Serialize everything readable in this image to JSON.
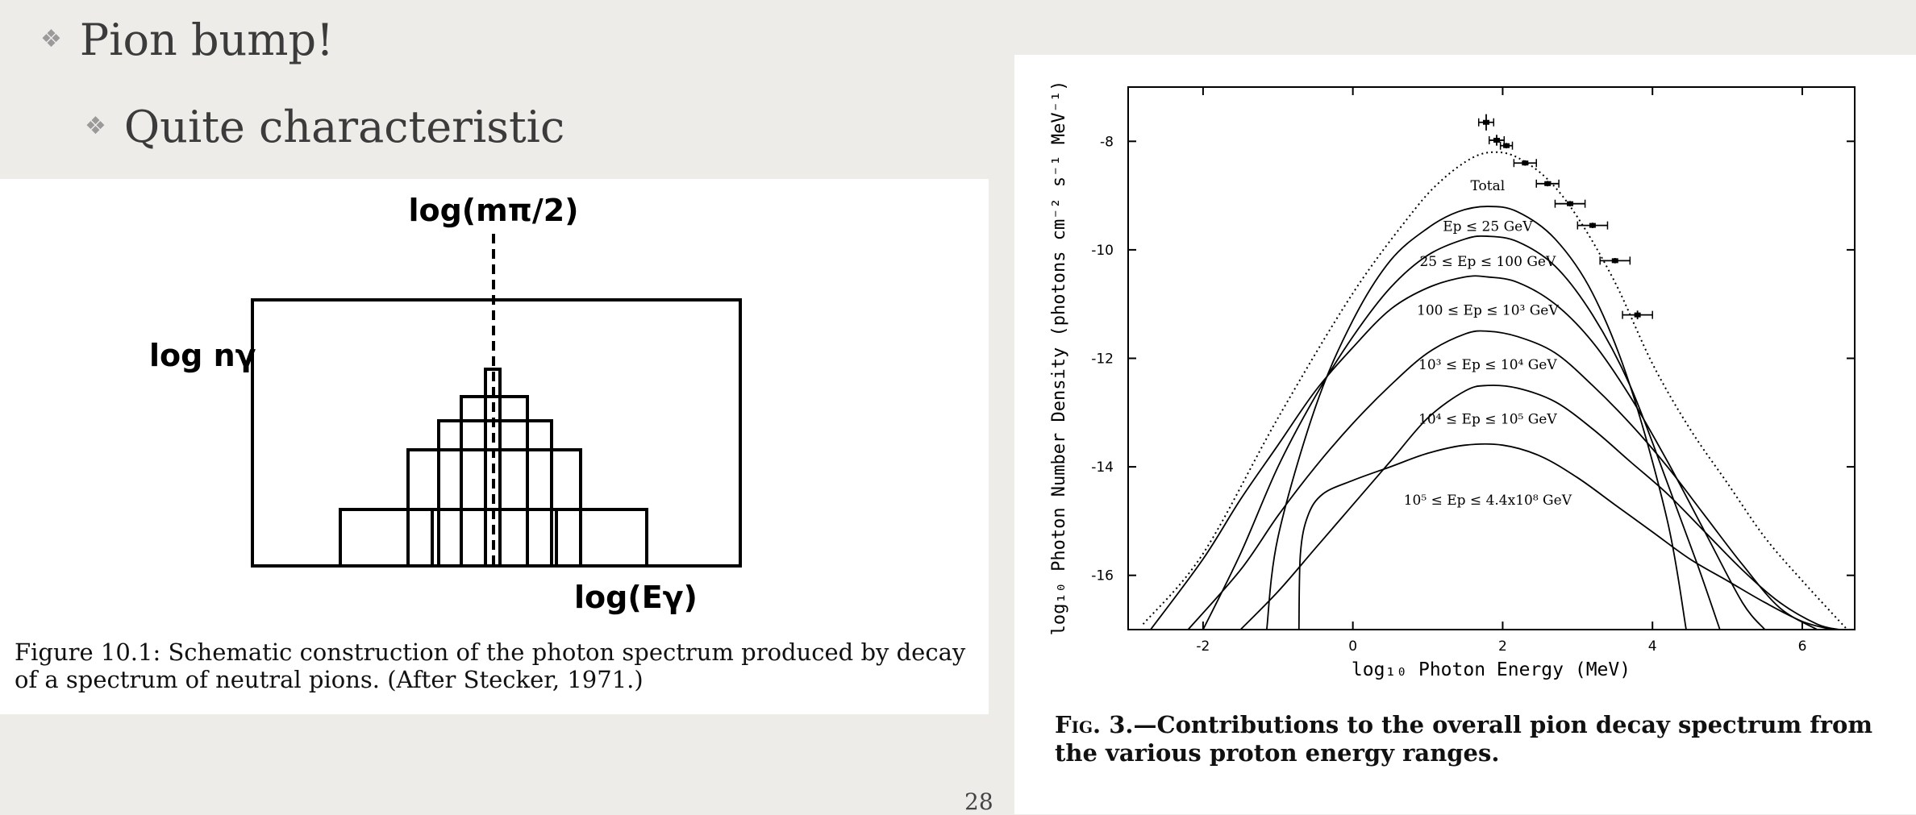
{
  "slide": {
    "bullet1": "Pion bump!",
    "bullet2": "Quite characteristic",
    "page_number": "28"
  },
  "left_figure": {
    "top_label": "log(mπ/2)",
    "y_label": "log nγ",
    "x_label": "log(Eγ)",
    "caption": "Figure 10.1: Schematic construction of the photon spectrum produced by decay of a spectrum of neutral pions. (After Stecker, 1971.)"
  },
  "chart_data": {
    "type": "line",
    "xlabel": "log₁₀ Photon Energy (MeV)",
    "ylabel": "log₁₀ Photon Number Density (photons cm⁻² s⁻¹ MeV⁻¹)",
    "xlim": [
      -3,
      6.7
    ],
    "ylim": [
      -17,
      -7
    ],
    "x_ticks": [
      -2,
      0,
      2,
      4,
      6
    ],
    "y_ticks": [
      -8,
      -10,
      -12,
      -14,
      -16
    ],
    "grid": false,
    "caption_label": "Fig. 3.",
    "caption_text": "—Contributions to the overall pion decay spectrum from the various proton energy ranges.",
    "series": [
      {
        "name": "Total",
        "style": "dotted",
        "x": [
          -2.8,
          -2,
          -1,
          0,
          0.8,
          1.2,
          1.6,
          1.9,
          2.2,
          2.6,
          3,
          3.5,
          4,
          4.5,
          5,
          5.5,
          6,
          6.6
        ],
        "y": [
          -16.9,
          -15.6,
          -13.1,
          -10.8,
          -9.3,
          -8.7,
          -8.3,
          -8.2,
          -8.3,
          -8.7,
          -9.4,
          -10.6,
          -12.1,
          -13.3,
          -14.3,
          -15.3,
          -16.1,
          -17.0
        ]
      },
      {
        "name": "Ep ≤ 25 GeV",
        "style": "solid",
        "x": [
          -1.15,
          -1,
          -0.5,
          0,
          0.5,
          1,
          1.4,
          1.8,
          2.2,
          2.7,
          3.2,
          3.7,
          4.2,
          4.45
        ],
        "y": [
          -17,
          -15.3,
          -12.9,
          -11.3,
          -10.2,
          -9.6,
          -9.3,
          -9.2,
          -9.3,
          -9.8,
          -10.8,
          -12.5,
          -15.0,
          -17
        ]
      },
      {
        "name": "25 ≤ Ep ≤ 100 GeV",
        "style": "solid",
        "x": [
          -2.0,
          -1.5,
          -1,
          -0.5,
          0,
          0.5,
          1,
          1.5,
          1.8,
          2.2,
          2.7,
          3.2,
          3.7,
          4.2,
          4.6,
          4.9
        ],
        "y": [
          -17,
          -15.6,
          -14.0,
          -12.7,
          -11.6,
          -10.7,
          -10.1,
          -9.8,
          -9.75,
          -9.85,
          -10.3,
          -11.2,
          -12.5,
          -14.3,
          -15.8,
          -17
        ]
      },
      {
        "name": "100 ≤ Ep ≤ 10³ GeV",
        "style": "solid",
        "x": [
          -2.7,
          -2,
          -1.5,
          -1,
          -0.5,
          0,
          0.5,
          1,
          1.5,
          1.8,
          2.2,
          2.7,
          3.2,
          3.7,
          4.2,
          4.7,
          5.2,
          5.5
        ],
        "y": [
          -17,
          -15.7,
          -14.6,
          -13.6,
          -12.6,
          -11.8,
          -11.1,
          -10.7,
          -10.5,
          -10.5,
          -10.6,
          -11.0,
          -11.7,
          -12.7,
          -13.9,
          -15.2,
          -16.5,
          -17
        ]
      },
      {
        "name": "10³ ≤ Ep ≤ 10⁴ GeV",
        "style": "solid",
        "x": [
          -2.2,
          -1.5,
          -1,
          -0.5,
          0,
          0.5,
          1,
          1.5,
          1.8,
          2.2,
          2.7,
          3.2,
          3.7,
          4.2,
          4.7,
          5.2,
          5.7,
          6.2
        ],
        "y": [
          -17,
          -15.9,
          -14.9,
          -14.0,
          -13.2,
          -12.5,
          -11.9,
          -11.55,
          -11.5,
          -11.6,
          -11.9,
          -12.5,
          -13.2,
          -14.0,
          -14.9,
          -15.8,
          -16.6,
          -17
        ]
      },
      {
        "name": "10⁴ ≤ Ep ≤ 10⁵ GeV",
        "style": "solid",
        "x": [
          -1.5,
          -1,
          -0.5,
          0,
          0.5,
          1,
          1.5,
          1.8,
          2.2,
          2.7,
          3.2,
          3.7,
          4.2,
          4.7,
          5.2,
          5.7,
          6.2,
          6.5
        ],
        "y": [
          -17,
          -16.3,
          -15.5,
          -14.7,
          -13.9,
          -13.1,
          -12.6,
          -12.5,
          -12.55,
          -12.8,
          -13.3,
          -13.9,
          -14.5,
          -15.2,
          -15.9,
          -16.5,
          -16.9,
          -17
        ]
      },
      {
        "name": "10⁵ ≤ Ep ≤ 4.4x10⁸ GeV",
        "style": "solid",
        "x": [
          -0.72,
          -0.7,
          -0.6,
          -0.4,
          0,
          0.5,
          1,
          1.5,
          2,
          2.5,
          3,
          3.5,
          4,
          4.5,
          5,
          5.5,
          6,
          6.4
        ],
        "y": [
          -17,
          -15.6,
          -14.9,
          -14.5,
          -14.25,
          -14.0,
          -13.75,
          -13.6,
          -13.6,
          -13.8,
          -14.2,
          -14.7,
          -15.2,
          -15.7,
          -16.1,
          -16.5,
          -16.85,
          -17
        ]
      }
    ],
    "curve_labels": [
      {
        "text": "Total",
        "x": 1.8,
        "y": -8.9
      },
      {
        "text": "Ep ≤ 25 GeV",
        "x": 1.8,
        "y": -9.65
      },
      {
        "text": "25 ≤ Ep ≤ 100 GeV",
        "x": 1.8,
        "y": -10.3
      },
      {
        "text": "100 ≤ Ep ≤ 10³ GeV",
        "x": 1.8,
        "y": -11.2
      },
      {
        "text": "10³ ≤ Ep ≤ 10⁴ GeV",
        "x": 1.8,
        "y": -12.2
      },
      {
        "text": "10⁴ ≤ Ep ≤ 10⁵ GeV",
        "x": 1.8,
        "y": -13.2
      },
      {
        "text": "10⁵ ≤ Ep ≤ 4.4x10⁸ GeV",
        "x": 1.8,
        "y": -14.7
      }
    ],
    "data_points": [
      {
        "x": 1.78,
        "y": -7.65,
        "xerr": 0.1,
        "yerr": 0.15
      },
      {
        "x": 1.92,
        "y": -7.98,
        "xerr": 0.1,
        "yerr": 0.1
      },
      {
        "x": 2.05,
        "y": -8.08,
        "xerr": 0.08,
        "yerr": 0.05
      },
      {
        "x": 2.3,
        "y": -8.4,
        "xerr": 0.15,
        "yerr": 0.05
      },
      {
        "x": 2.6,
        "y": -8.78,
        "xerr": 0.15,
        "yerr": 0.05
      },
      {
        "x": 2.9,
        "y": -9.15,
        "xerr": 0.2,
        "yerr": 0.05
      },
      {
        "x": 3.2,
        "y": -9.55,
        "xerr": 0.2,
        "yerr": 0.05
      },
      {
        "x": 3.5,
        "y": -10.2,
        "xerr": 0.2,
        "yerr": 0.05
      },
      {
        "x": 3.8,
        "y": -11.2,
        "xerr": 0.2,
        "yerr": 0.08
      }
    ]
  }
}
